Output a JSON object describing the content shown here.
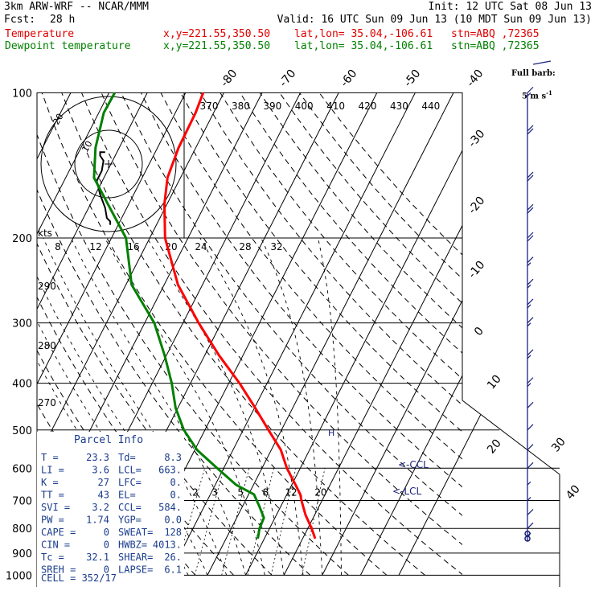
{
  "header": {
    "model": "3km ARW-WRF -- NCAR/MMM",
    "init": "Init: 12 UTC Sat 08 Jun 13",
    "fcst_label": "Fcst:",
    "fcst_value": "28 h",
    "valid": "Valid: 16 UTC Sun 09 Jun 13 (10 MDT Sun 09 Jun 13)",
    "temp_label": "Temperature",
    "dew_label": "Dewpoint temperature",
    "xy": "x,y=221.55,350.50",
    "latlon": "lat,lon= 35.04,-106.61",
    "stn": "stn=ABQ ,72365",
    "temp_color": "#ff0000",
    "dew_color": "#008000"
  },
  "barb_legend": {
    "line1": "Full barb:",
    "line2": "5 m s",
    "unit_sup": "-1"
  },
  "hodograph": {
    "units": "kts",
    "ring_labels": [
      "10",
      "20"
    ]
  },
  "parcel_info": {
    "title": "Parcel Info",
    "rows": [
      {
        "k1": "T",
        "v1": "23.3",
        "k2": "Td",
        "v2": "8.3"
      },
      {
        "k1": "LI",
        "v1": "3.6",
        "k2": "LCL",
        "v2": "663."
      },
      {
        "k1": "K",
        "v1": "27",
        "k2": "LFC",
        "v2": "0."
      },
      {
        "k1": "TT",
        "v1": "43",
        "k2": "EL",
        "v2": "0."
      },
      {
        "k1": "SVI",
        "v1": "3.2",
        "k2": "CCL",
        "v2": "584."
      },
      {
        "k1": "PW",
        "v1": "1.74",
        "k2": "YGP",
        "v2": "0.0"
      },
      {
        "k1": "CAPE",
        "v1": "0",
        "k2": "SWEAT",
        "v2": "128"
      },
      {
        "k1": "CIN",
        "v1": "0",
        "k2": "HWBZ",
        "v2": "4013."
      },
      {
        "k1": "Tc",
        "v1": "32.1",
        "k2": "SHEAR",
        "v2": "26."
      },
      {
        "k1": "SREH",
        "v1": "0",
        "k2": "LAPSE",
        "v2": "6.1"
      }
    ],
    "cell": "CELL = 352/17"
  },
  "annotations": {
    "ccl": "<-CCL",
    "lcl": "<-LCL",
    "h_marker": "H"
  },
  "chart_data": {
    "type": "skew-t",
    "pressure_levels": [
      100,
      200,
      300,
      400,
      500,
      600,
      700,
      800,
      900,
      1000
    ],
    "pressure_labels": [
      "100",
      "200",
      "300",
      "400",
      "500",
      "600",
      "700",
      "800",
      "900",
      "1000"
    ],
    "isotherm_top_labels": [
      "-80",
      "-70",
      "-60",
      "-50",
      "-40"
    ],
    "isotherm_right_labels": [
      "-30",
      "-20",
      "-10",
      "0",
      "10",
      "20",
      "30",
      "40"
    ],
    "theta_labels": [
      "370",
      "380",
      "390",
      "400",
      "410",
      "420",
      "430",
      "440"
    ],
    "dry_adiabat_left_labels": [
      "290",
      "280",
      "270"
    ],
    "mixing_ratio_labels": [
      "2",
      "3",
      "5",
      "8",
      "12",
      "20"
    ],
    "hodo_speed_labels": [
      "8",
      "12",
      "16",
      "20",
      "24",
      "28",
      "32"
    ],
    "temperature": {
      "name": "Temperature",
      "pressure": [
        840,
        800,
        750,
        700,
        680,
        650,
        600,
        550,
        500,
        450,
        400,
        350,
        300,
        250,
        200,
        170,
        150,
        130,
        110,
        100
      ],
      "values": [
        23.3,
        21.0,
        17.6,
        14.6,
        13.5,
        11.0,
        6.5,
        2.5,
        -3.4,
        -9.8,
        -17.2,
        -26.3,
        -35.9,
        -46.4,
        -56.0,
        -60.7,
        -63.4,
        -64.5,
        -64.7,
        -65.4
      ]
    },
    "dewpoint": {
      "name": "Dewpoint temperature",
      "pressure": [
        840,
        800,
        760,
        720,
        680,
        650,
        600,
        550,
        500,
        450,
        400,
        350,
        300,
        250,
        200,
        170,
        150,
        130,
        110,
        100
      ],
      "values": [
        8.3,
        7.4,
        7.1,
        4.4,
        1.4,
        -4.5,
        -11.7,
        -19.4,
        -25.5,
        -30.6,
        -34.9,
        -40.5,
        -47.5,
        -58.5,
        -66.2,
        -75.5,
        -82.6,
        -86.2,
        -88.7,
        -88.5
      ]
    },
    "isotherm_range": [
      -80,
      40
    ],
    "pressure_range": [
      1000,
      100
    ],
    "y_scale": "log",
    "wind_barbs": {
      "pressure": [
        100,
        120,
        150,
        175,
        200,
        225,
        250,
        275,
        300,
        350,
        400,
        450,
        500,
        550,
        600,
        650,
        700,
        750,
        800,
        830
      ],
      "speed_ms": [
        15,
        20,
        20,
        20,
        20,
        15,
        15,
        15,
        15,
        15,
        15,
        10,
        10,
        10,
        10,
        5,
        5,
        10,
        10,
        5
      ]
    },
    "hodograph_trace": {
      "u": [
        0.5,
        0.5,
        -0.5,
        -1,
        -2.5,
        -3.5,
        -2,
        -1.5,
        -2.5,
        -2.5,
        -2,
        -1
      ],
      "v": [
        -18,
        -17,
        -16,
        -13,
        -9,
        -5,
        -2,
        1,
        2.5,
        3.5,
        3.5,
        3.5
      ]
    }
  }
}
